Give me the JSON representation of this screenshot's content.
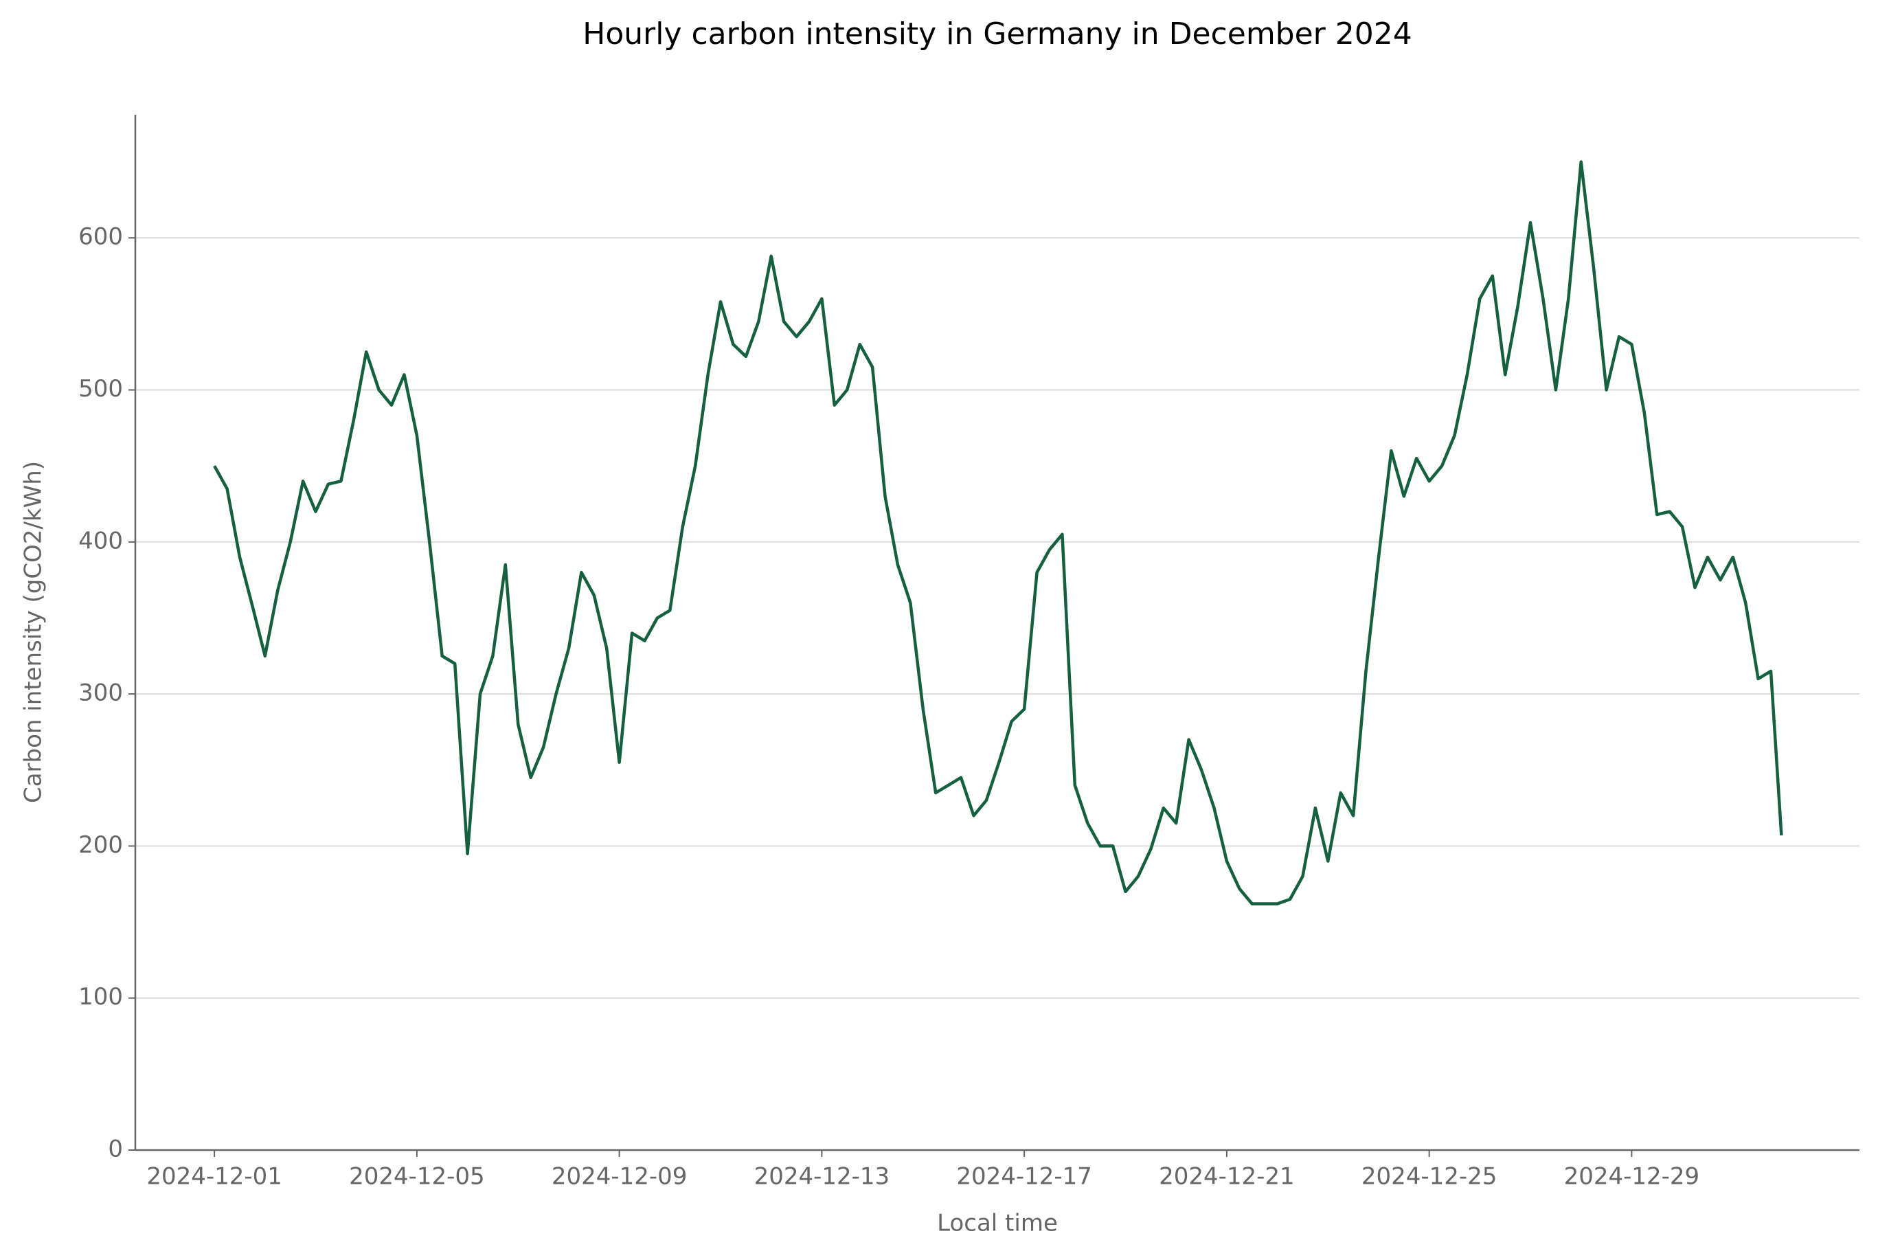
{
  "chart_data": {
    "type": "line",
    "title": "Hourly carbon intensity in Germany in December 2024",
    "xlabel": "Local time",
    "ylabel": "Carbon intensity (gCO2/kWh)",
    "x": [
      "2024-12-01 00:00",
      "2024-12-01 06:00",
      "2024-12-01 12:00",
      "2024-12-01 18:00",
      "2024-12-02 00:00",
      "2024-12-02 06:00",
      "2024-12-02 12:00",
      "2024-12-02 18:00",
      "2024-12-03 00:00",
      "2024-12-03 06:00",
      "2024-12-03 12:00",
      "2024-12-03 18:00",
      "2024-12-04 00:00",
      "2024-12-04 06:00",
      "2024-12-04 12:00",
      "2024-12-04 18:00",
      "2024-12-05 00:00",
      "2024-12-05 06:00",
      "2024-12-05 12:00",
      "2024-12-05 18:00",
      "2024-12-06 00:00",
      "2024-12-06 06:00",
      "2024-12-06 12:00",
      "2024-12-06 18:00",
      "2024-12-07 00:00",
      "2024-12-07 06:00",
      "2024-12-07 12:00",
      "2024-12-07 18:00",
      "2024-12-08 00:00",
      "2024-12-08 06:00",
      "2024-12-08 12:00",
      "2024-12-08 18:00",
      "2024-12-09 00:00",
      "2024-12-09 06:00",
      "2024-12-09 12:00",
      "2024-12-09 18:00",
      "2024-12-10 00:00",
      "2024-12-10 06:00",
      "2024-12-10 12:00",
      "2024-12-10 18:00",
      "2024-12-11 00:00",
      "2024-12-11 06:00",
      "2024-12-11 12:00",
      "2024-12-11 18:00",
      "2024-12-12 00:00",
      "2024-12-12 06:00",
      "2024-12-12 12:00",
      "2024-12-12 18:00",
      "2024-12-13 00:00",
      "2024-12-13 06:00",
      "2024-12-13 12:00",
      "2024-12-13 18:00",
      "2024-12-14 00:00",
      "2024-12-14 06:00",
      "2024-12-14 12:00",
      "2024-12-14 18:00",
      "2024-12-15 00:00",
      "2024-12-15 06:00",
      "2024-12-15 12:00",
      "2024-12-15 18:00",
      "2024-12-16 00:00",
      "2024-12-16 06:00",
      "2024-12-16 12:00",
      "2024-12-16 18:00",
      "2024-12-17 00:00",
      "2024-12-17 06:00",
      "2024-12-17 12:00",
      "2024-12-17 18:00",
      "2024-12-18 00:00",
      "2024-12-18 06:00",
      "2024-12-18 12:00",
      "2024-12-18 18:00",
      "2024-12-19 00:00",
      "2024-12-19 06:00",
      "2024-12-19 12:00",
      "2024-12-19 18:00",
      "2024-12-20 00:00",
      "2024-12-20 06:00",
      "2024-12-20 12:00",
      "2024-12-20 18:00",
      "2024-12-21 00:00",
      "2024-12-21 06:00",
      "2024-12-21 12:00",
      "2024-12-21 18:00",
      "2024-12-22 00:00",
      "2024-12-22 06:00",
      "2024-12-22 12:00",
      "2024-12-22 18:00",
      "2024-12-23 00:00",
      "2024-12-23 06:00",
      "2024-12-23 12:00",
      "2024-12-23 18:00",
      "2024-12-24 00:00",
      "2024-12-24 06:00",
      "2024-12-24 12:00",
      "2024-12-24 18:00",
      "2024-12-25 00:00",
      "2024-12-25 06:00",
      "2024-12-25 12:00",
      "2024-12-25 18:00",
      "2024-12-26 00:00",
      "2024-12-26 06:00",
      "2024-12-26 12:00",
      "2024-12-26 18:00",
      "2024-12-27 00:00",
      "2024-12-27 06:00",
      "2024-12-27 12:00",
      "2024-12-27 18:00",
      "2024-12-28 00:00",
      "2024-12-28 06:00",
      "2024-12-28 12:00",
      "2024-12-28 18:00",
      "2024-12-29 00:00",
      "2024-12-29 06:00",
      "2024-12-29 12:00",
      "2024-12-29 18:00",
      "2024-12-30 00:00",
      "2024-12-30 06:00",
      "2024-12-30 12:00",
      "2024-12-30 18:00",
      "2024-12-31 00:00",
      "2024-12-31 06:00",
      "2024-12-31 12:00",
      "2024-12-31 18:00",
      "2024-12-31 23:00"
    ],
    "series": [
      {
        "name": "Carbon intensity",
        "color": "#13613f",
        "values": [
          450,
          435,
          390,
          358,
          325,
          368,
          400,
          440,
          420,
          438,
          440,
          480,
          525,
          500,
          490,
          510,
          470,
          400,
          325,
          320,
          195,
          300,
          325,
          385,
          280,
          245,
          265,
          300,
          330,
          380,
          365,
          330,
          255,
          340,
          335,
          350,
          355,
          410,
          450,
          510,
          558,
          530,
          522,
          545,
          588,
          545,
          535,
          545,
          560,
          490,
          500,
          530,
          515,
          430,
          385,
          360,
          290,
          235,
          240,
          245,
          220,
          230,
          255,
          282,
          290,
          380,
          395,
          405,
          240,
          215,
          200,
          200,
          170,
          180,
          198,
          225,
          215,
          270,
          250,
          225,
          190,
          172,
          162,
          162,
          162,
          165,
          180,
          225,
          190,
          235,
          220,
          315,
          390,
          460,
          430,
          455,
          440,
          450,
          470,
          510,
          560,
          575,
          510,
          555,
          610,
          560,
          500,
          560,
          650,
          580,
          500,
          535,
          530,
          485,
          418,
          420,
          410,
          370,
          390,
          375,
          390,
          360,
          310,
          315,
          207
        ]
      }
    ],
    "xlim": [
      "2024-11-29 10:30",
      "2025-01-02 12:00"
    ],
    "xticks": [
      "2024-12-01",
      "2024-12-05",
      "2024-12-09",
      "2024-12-13",
      "2024-12-17",
      "2024-12-21",
      "2024-12-25",
      "2024-12-29"
    ],
    "ylim": [
      0,
      681
    ],
    "yticks": [
      0,
      100,
      200,
      300,
      400,
      500,
      600
    ],
    "grid": true
  }
}
